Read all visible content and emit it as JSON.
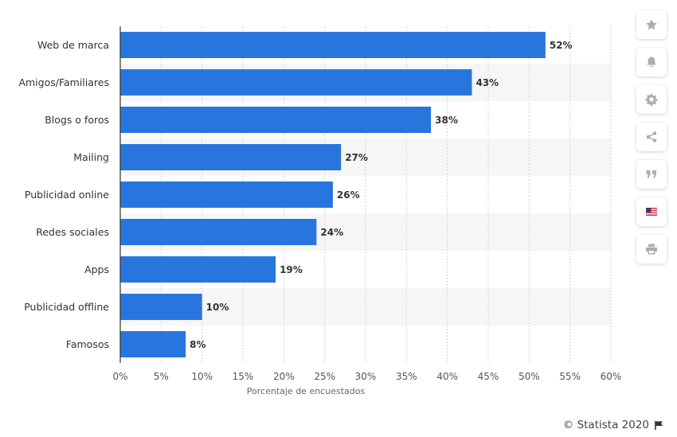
{
  "chart_data": {
    "type": "bar",
    "orientation": "horizontal",
    "categories": [
      "Web de marca",
      "Amigos/Familiares",
      "Blogs o foros",
      "Mailing",
      "Publicidad online",
      "Redes sociales",
      "Apps",
      "Publicidad offline",
      "Famosos"
    ],
    "values": [
      52,
      43,
      38,
      27,
      26,
      24,
      19,
      10,
      8
    ],
    "value_labels": [
      "52%",
      "43%",
      "38%",
      "27%",
      "26%",
      "24%",
      "19%",
      "10%",
      "8%"
    ],
    "xlabel": "Porcentaje de encuestados",
    "xlim": [
      0,
      60
    ],
    "xticks": [
      "0%",
      "5%",
      "10%",
      "15%",
      "20%",
      "25%",
      "30%",
      "35%",
      "40%",
      "45%",
      "50%",
      "55%",
      "60%"
    ],
    "bar_color": "#2876dd",
    "grid": true
  },
  "sidebar": {
    "icons": [
      "star-icon",
      "bell-icon",
      "gear-icon",
      "share-icon",
      "quote-icon",
      "us-flag-icon",
      "print-icon"
    ]
  },
  "credit": {
    "text": "© Statista 2020",
    "icon": "flag-icon"
  }
}
